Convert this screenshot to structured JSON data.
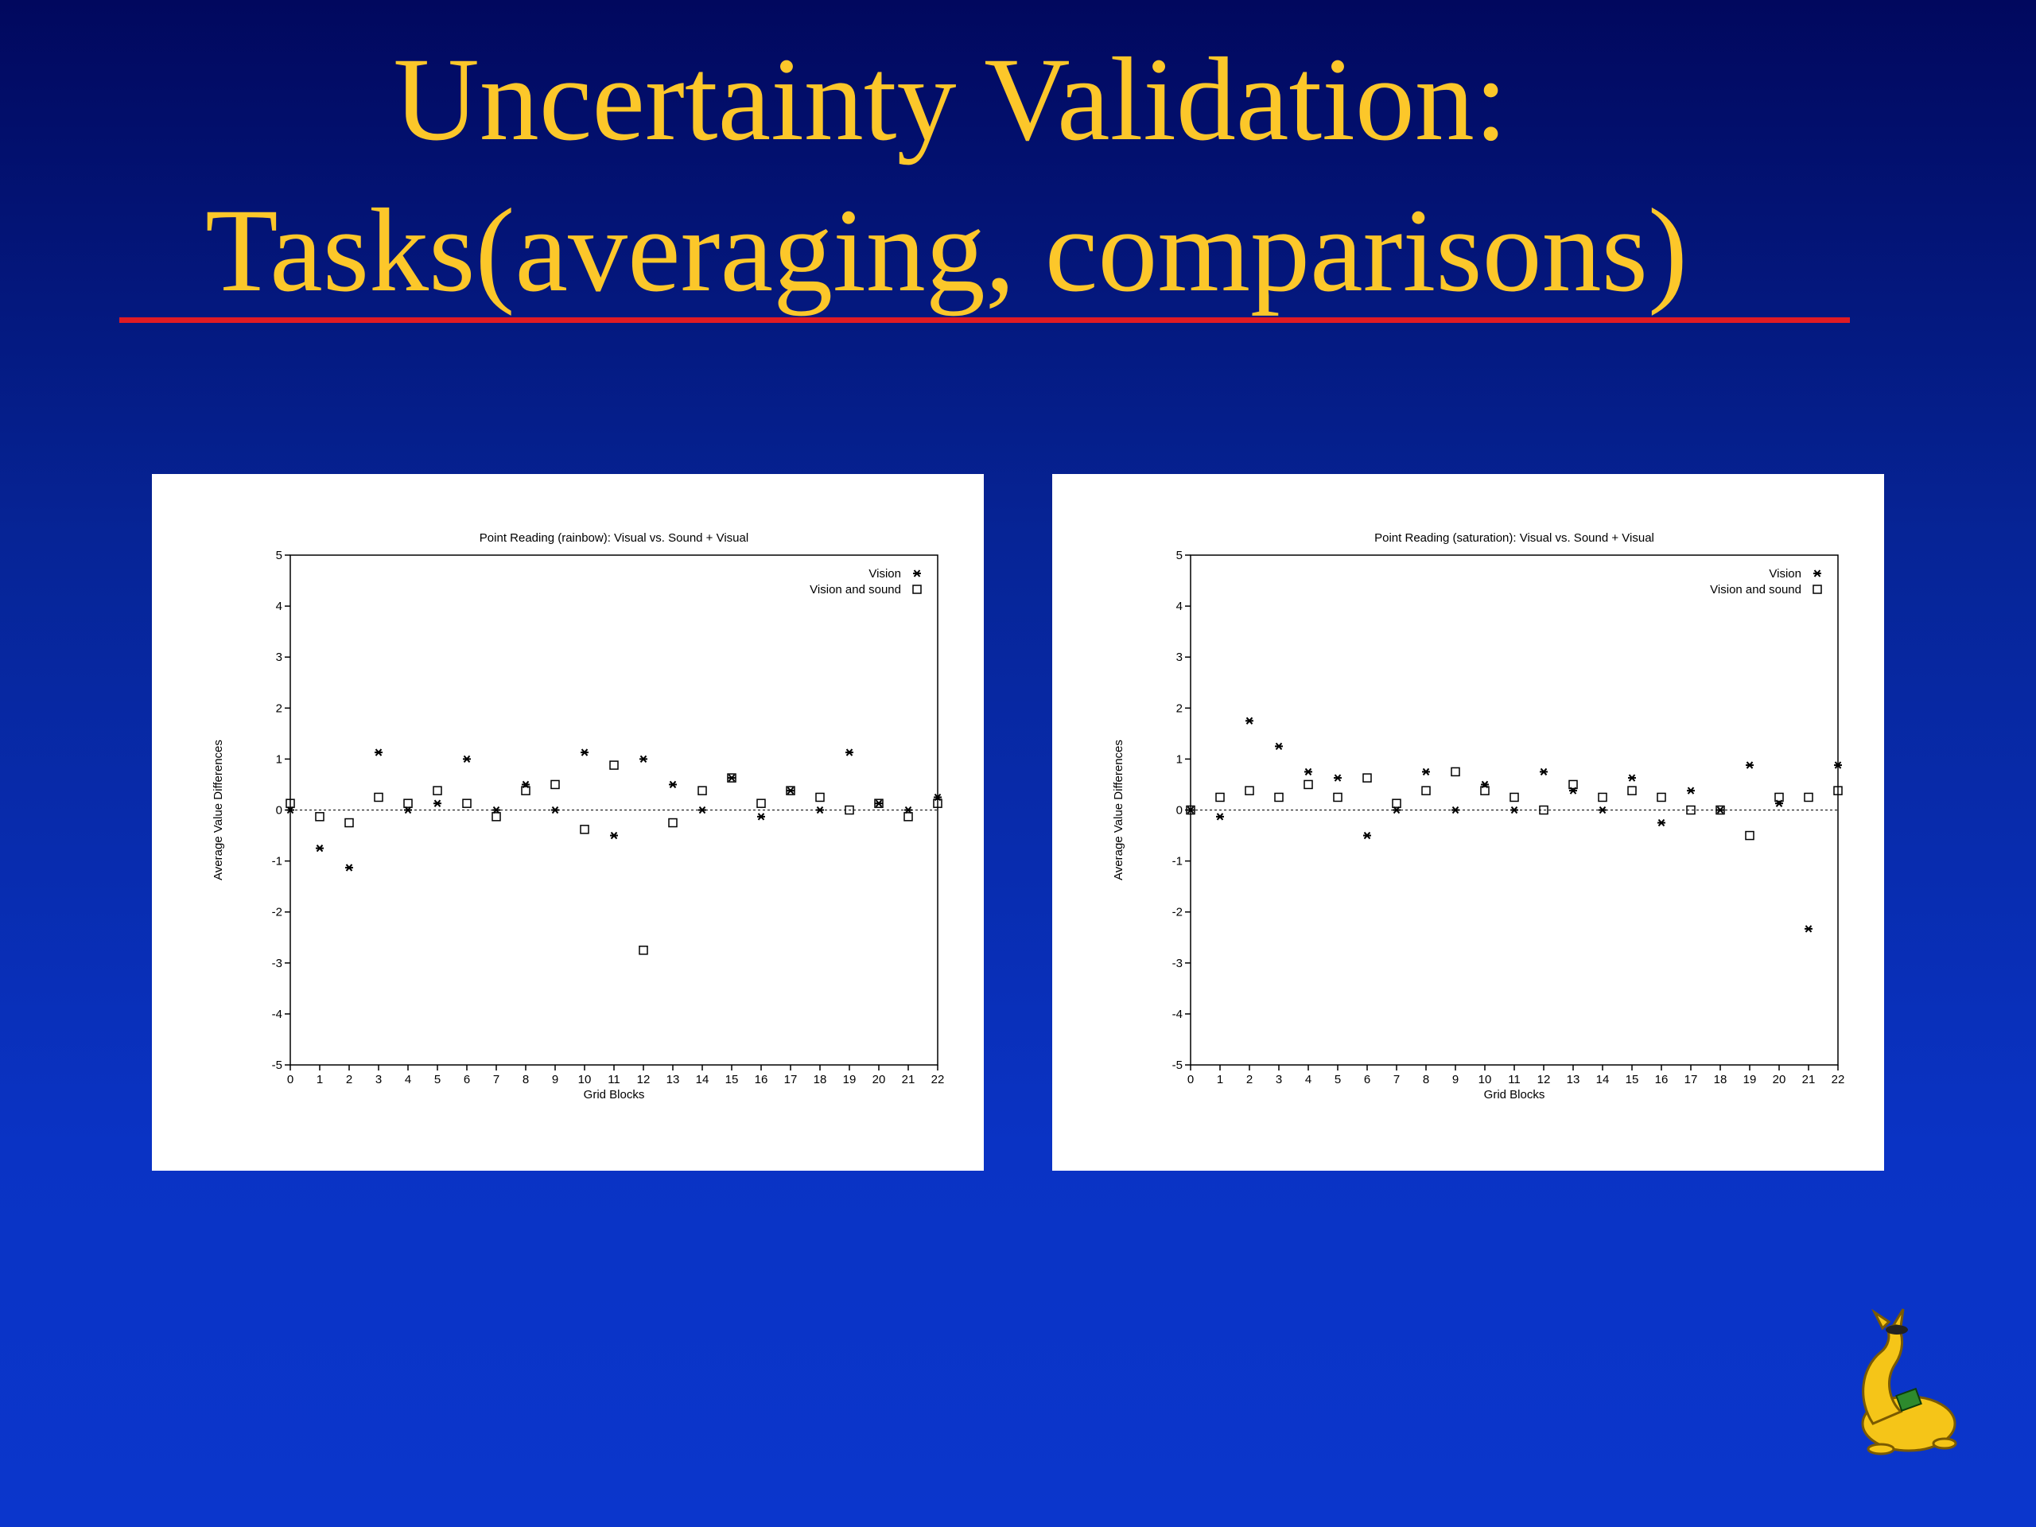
{
  "slide": {
    "title_line1": "Uncertainty Validation:",
    "title_line2": "Tasks(averaging, comparisons)",
    "colors": {
      "title": "#fcc72a",
      "rule": "#e01b24",
      "background_top": "#01085e",
      "background_bottom": "#0b36cc"
    }
  },
  "chart_data": [
    {
      "type": "scatter",
      "title": "Point Reading (rainbow): Visual vs. Sound + Visual",
      "xlabel": "Grid Blocks",
      "ylabel": "Average Value Differences",
      "xlim": [
        0,
        22
      ],
      "ylim": [
        -5,
        5
      ],
      "xticks": [
        0,
        1,
        2,
        3,
        4,
        5,
        6,
        7,
        8,
        9,
        10,
        11,
        12,
        13,
        14,
        15,
        16,
        17,
        18,
        19,
        20,
        21,
        22
      ],
      "yticks": [
        -5,
        -4,
        -3,
        -2,
        -1,
        0,
        1,
        2,
        3,
        4,
        5
      ],
      "reference_line": 0,
      "legend_position": "top-right",
      "series": [
        {
          "name": "Vision",
          "marker": "star",
          "x": [
            0,
            1,
            2,
            3,
            4,
            5,
            6,
            7,
            8,
            9,
            10,
            11,
            12,
            13,
            14,
            15,
            16,
            17,
            18,
            19,
            20,
            21,
            22
          ],
          "y": [
            0,
            -0.75,
            -1.13,
            1.13,
            0,
            0.13,
            1,
            0,
            0.5,
            0,
            1.13,
            -0.5,
            1,
            0.5,
            0,
            0.63,
            -0.13,
            0.38,
            0,
            1.13,
            0.13,
            0,
            0.25
          ]
        },
        {
          "name": "Vision and sound",
          "marker": "square",
          "x": [
            0,
            1,
            2,
            3,
            4,
            5,
            6,
            7,
            8,
            9,
            10,
            11,
            12,
            13,
            14,
            15,
            16,
            17,
            18,
            19,
            20,
            21,
            22
          ],
          "y": [
            0.13,
            -0.13,
            -0.25,
            0.25,
            0.13,
            0.38,
            0.13,
            -0.13,
            0.38,
            0.5,
            -0.38,
            0.88,
            -2.75,
            -0.25,
            0.38,
            0.63,
            0.13,
            0.38,
            0.25,
            0,
            0.13,
            -0.13,
            0.13
          ]
        }
      ]
    },
    {
      "type": "scatter",
      "title": "Point Reading (saturation): Visual vs. Sound + Visual",
      "xlabel": "Grid Blocks",
      "ylabel": "Average Value Differences",
      "xlim": [
        0,
        22
      ],
      "ylim": [
        -5,
        5
      ],
      "xticks": [
        0,
        1,
        2,
        3,
        4,
        5,
        6,
        7,
        8,
        9,
        10,
        11,
        12,
        13,
        14,
        15,
        16,
        17,
        18,
        19,
        20,
        21,
        22
      ],
      "yticks": [
        -5,
        -4,
        -3,
        -2,
        -1,
        0,
        1,
        2,
        3,
        4,
        5
      ],
      "reference_line": 0,
      "legend_position": "top-right",
      "series": [
        {
          "name": "Vision",
          "marker": "star",
          "x": [
            0,
            1,
            2,
            3,
            4,
            5,
            6,
            7,
            8,
            9,
            10,
            11,
            12,
            13,
            14,
            15,
            16,
            17,
            18,
            19,
            20,
            21,
            22
          ],
          "y": [
            0,
            -0.13,
            1.75,
            1.25,
            0.75,
            0.63,
            -0.5,
            0,
            0.75,
            0,
            0.5,
            0,
            0.75,
            0.38,
            0,
            0.63,
            -0.25,
            0.38,
            0,
            0.88,
            0.13,
            -2.33,
            0.88
          ]
        },
        {
          "name": "Vision and sound",
          "marker": "square",
          "x": [
            0,
            1,
            2,
            3,
            4,
            5,
            6,
            7,
            8,
            9,
            10,
            11,
            12,
            13,
            14,
            15,
            16,
            17,
            18,
            19,
            20,
            21,
            22
          ],
          "y": [
            0,
            0.25,
            0.38,
            0.25,
            0.5,
            0.25,
            0.63,
            0.13,
            0.38,
            0.75,
            0.38,
            0.25,
            0,
            0.5,
            0.25,
            0.38,
            0.25,
            0,
            0,
            -0.5,
            0.25,
            0.25,
            0.38
          ]
        }
      ]
    }
  ]
}
